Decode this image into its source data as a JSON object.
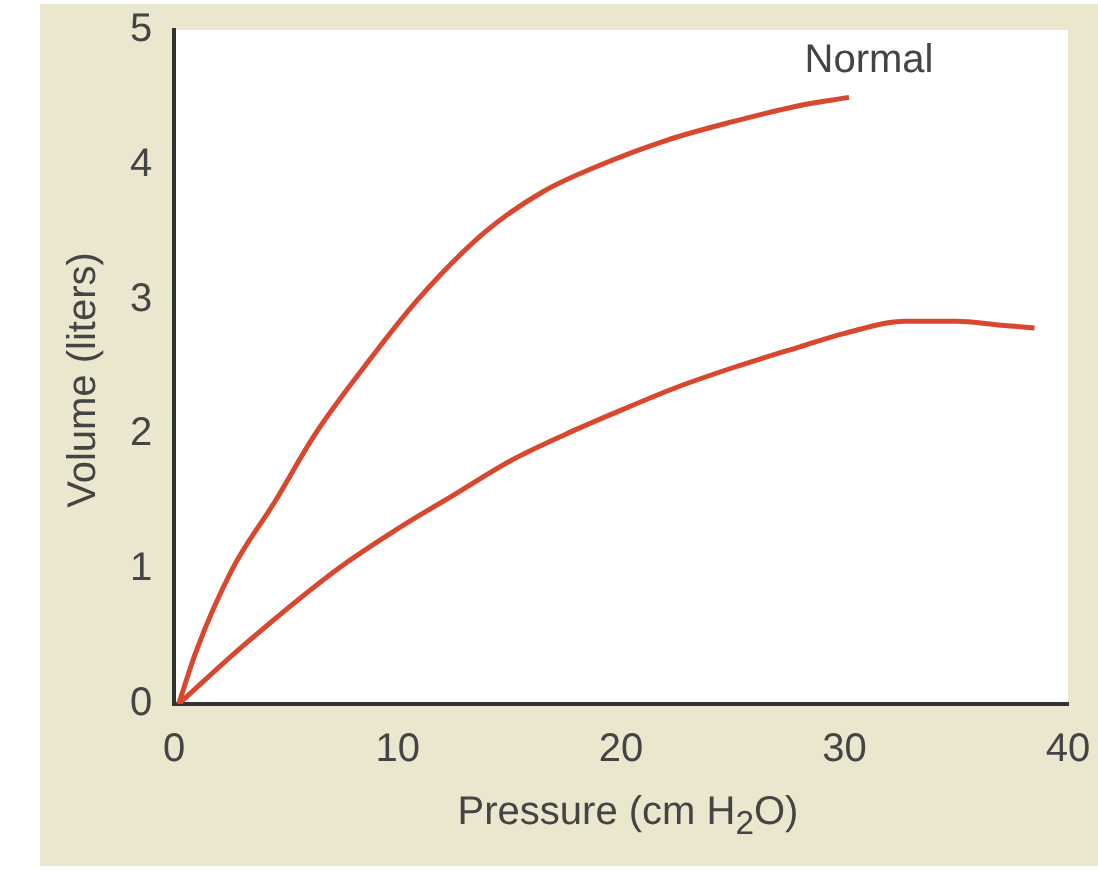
{
  "chart_data": {
    "type": "line",
    "xlabel": "Pressure (cm H$_{2}$O)",
    "ylabel": "Volume (liters)",
    "xlim": [
      0,
      40
    ],
    "xticks": [
      0,
      10,
      20,
      30,
      40
    ],
    "ylim": [
      0,
      5
    ],
    "yticks": [
      0,
      1,
      2,
      3,
      4,
      5
    ],
    "grid": false,
    "legend": false,
    "marker": "none",
    "line_style": "solid",
    "series": [
      {
        "name": "Normal",
        "color": "#d9472f",
        "x": [
          0.2,
          1,
          2.6,
          4.5,
          6.3,
          8.5,
          10.9,
          13.9,
          16.5,
          19.1,
          22,
          25,
          28,
          30.2
        ],
        "values": [
          0,
          0.4,
          1,
          1.5,
          2,
          2.5,
          3,
          3.5,
          3.8,
          4,
          4.18,
          4.32,
          4.44,
          4.5
        ]
      },
      {
        "color": "#d9472f",
        "x": [
          0.2,
          3,
          7.3,
          10,
          12.5,
          15,
          17.5,
          20,
          22.5,
          25.1,
          28,
          30,
          32.7,
          35,
          37,
          38.5
        ],
        "values": [
          0,
          0.42,
          1,
          1.3,
          1.55,
          1.8,
          2,
          2.18,
          2.35,
          2.5,
          2.65,
          2.75,
          2.84,
          2.84,
          2.81,
          2.79
        ]
      }
    ]
  }
}
